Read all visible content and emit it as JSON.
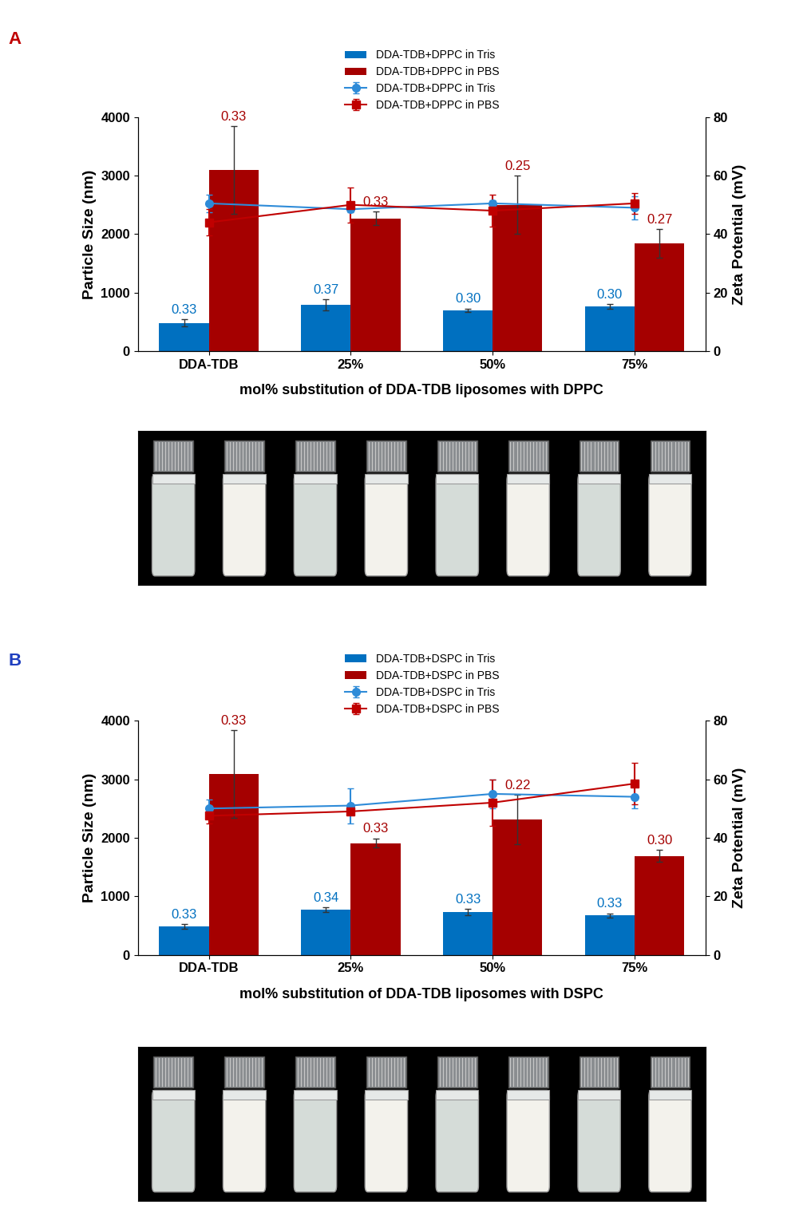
{
  "chart_data": [
    {
      "type": "bar",
      "panel_label": "A",
      "xlabel": "mol% substitution of DDA-TDB liposomes with DPPC",
      "ylabel": "Particle Size (nm)",
      "y2label": "Zeta Potential (mV)",
      "categories": [
        "DDA-TDB",
        "25%",
        "50%",
        "75%"
      ],
      "ylim": [
        0,
        4000
      ],
      "yticks": [
        0,
        1000,
        2000,
        3000,
        4000
      ],
      "y2lim": [
        0,
        80
      ],
      "y2ticks": [
        0,
        20,
        40,
        60,
        80
      ],
      "legend": "upper center",
      "series": [
        {
          "name": "DDA-TDB+DPPC in Tris",
          "type": "bar",
          "color": "#0070c0",
          "values": [
            480,
            790,
            700,
            760
          ],
          "errors": [
            60,
            100,
            30,
            40
          ],
          "pdi": [
            "0.33",
            "0.37",
            "0.30",
            "0.30"
          ]
        },
        {
          "name": "DDA-TDB+DPPC in PBS",
          "type": "bar",
          "color": "#a50000",
          "values": [
            3100,
            2270,
            2500,
            1840
          ],
          "errors": [
            750,
            110,
            500,
            240
          ],
          "pdi": [
            "0.33",
            "0.33",
            "0.25",
            "0.27"
          ]
        },
        {
          "name": "DDA-TDB+DPPC in Tris",
          "type": "line",
          "axis": "y2",
          "color": "#2e8bd8",
          "marker": "o",
          "values": [
            50.5,
            48.5,
            50.5,
            49
          ],
          "errors": [
            3,
            1,
            1,
            4
          ]
        },
        {
          "name": "DDA-TDB+DPPC in PBS",
          "type": "line",
          "axis": "y2",
          "color": "#c00000",
          "marker": "s",
          "values": [
            44,
            50,
            48,
            50.5
          ],
          "errors": [
            4.5,
            6,
            5.5,
            3.5
          ]
        }
      ]
    },
    {
      "type": "bar",
      "panel_label": "B",
      "xlabel": "mol% substitution of DDA-TDB liposomes with DSPC",
      "ylabel": "Particle Size (nm)",
      "y2label": "Zeta Potential (mV)",
      "categories": [
        "DDA-TDB",
        "25%",
        "50%",
        "75%"
      ],
      "ylim": [
        0,
        4000
      ],
      "yticks": [
        0,
        1000,
        2000,
        3000,
        4000
      ],
      "y2lim": [
        0,
        80
      ],
      "y2ticks": [
        0,
        20,
        40,
        60,
        80
      ],
      "legend": "upper center",
      "series": [
        {
          "name": "DDA-TDB+DSPC in Tris",
          "type": "bar",
          "color": "#0070c0",
          "values": [
            480,
            770,
            730,
            670
          ],
          "errors": [
            40,
            40,
            50,
            40
          ],
          "pdi": [
            "0.33",
            "0.34",
            "0.33",
            "0.33"
          ]
        },
        {
          "name": "DDA-TDB+DSPC in PBS",
          "type": "bar",
          "color": "#a50000",
          "values": [
            3090,
            1910,
            2310,
            1690
          ],
          "errors": [
            750,
            80,
            420,
            100
          ],
          "pdi": [
            "0.33",
            "0.33",
            "0.22",
            "0.30"
          ]
        },
        {
          "name": "DDA-TDB+DSPC in Tris",
          "type": "line",
          "axis": "y2",
          "color": "#2e8bd8",
          "marker": "o",
          "values": [
            50,
            51,
            55,
            54
          ],
          "errors": [
            3,
            6,
            5,
            4
          ]
        },
        {
          "name": "DDA-TDB+DSPC in PBS",
          "type": "line",
          "axis": "y2",
          "color": "#c00000",
          "marker": "s",
          "values": [
            47.5,
            49,
            52,
            58.5
          ],
          "errors": [
            2.5,
            1,
            8,
            7
          ]
        }
      ]
    }
  ]
}
